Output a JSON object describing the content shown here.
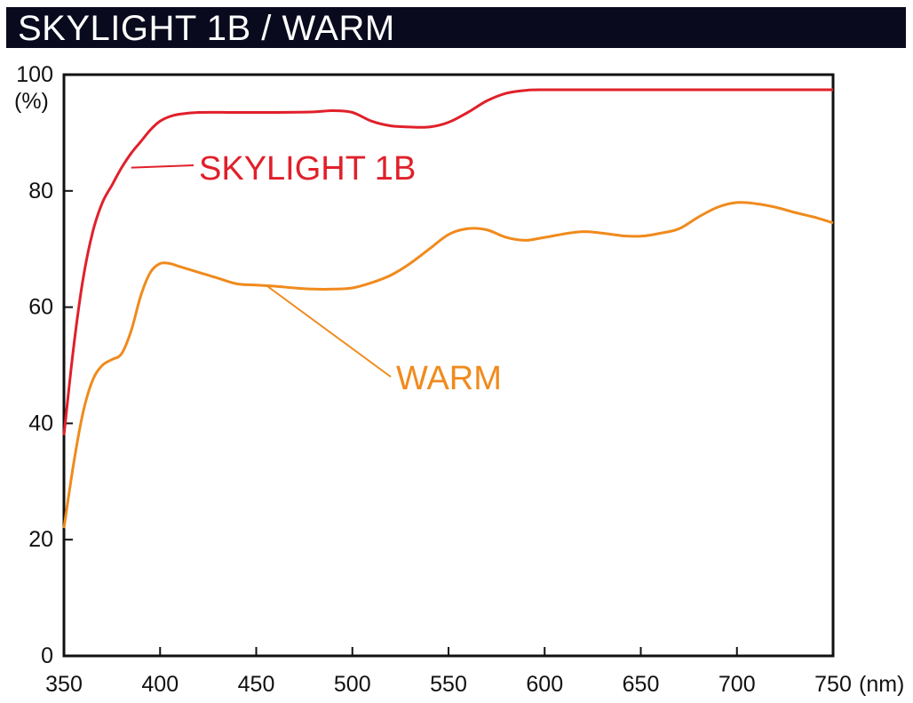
{
  "title": "SKYLIGHT 1B / WARM",
  "chart_data": {
    "type": "line",
    "title": "SKYLIGHT 1B / WARM",
    "xlabel": "(nm)",
    "ylabel": "(%)",
    "xlim": [
      350,
      750
    ],
    "ylim": [
      0,
      100
    ],
    "x_ticks": [
      350,
      400,
      450,
      500,
      550,
      600,
      650,
      700,
      750
    ],
    "y_ticks": [
      0,
      20,
      40,
      60,
      80,
      100
    ],
    "grid": false,
    "series": [
      {
        "name": "SKYLIGHT 1B",
        "color": "#e0202a",
        "x": [
          350,
          355,
          360,
          365,
          370,
          375,
          380,
          385,
          390,
          395,
          400,
          405,
          410,
          420,
          440,
          460,
          480,
          490,
          500,
          510,
          520,
          530,
          540,
          550,
          560,
          570,
          580,
          590,
          600,
          650,
          700,
          750
        ],
        "y": [
          38,
          53,
          65,
          73,
          78,
          81,
          84,
          86.5,
          88.5,
          90.5,
          92,
          92.8,
          93.2,
          93.5,
          93.5,
          93.5,
          93.6,
          93.8,
          93.5,
          92,
          91.2,
          91,
          91,
          91.8,
          93.5,
          95.5,
          96.8,
          97.3,
          97.4,
          97.4,
          97.4,
          97.4
        ]
      },
      {
        "name": "WARM",
        "color": "#f08a1c",
        "x": [
          350,
          355,
          360,
          365,
          370,
          375,
          380,
          385,
          390,
          395,
          400,
          405,
          410,
          420,
          430,
          440,
          450,
          460,
          470,
          480,
          490,
          500,
          510,
          520,
          530,
          540,
          550,
          560,
          570,
          580,
          590,
          600,
          620,
          640,
          650,
          660,
          670,
          680,
          690,
          700,
          710,
          720,
          730,
          740,
          750
        ],
        "y": [
          22,
          33,
          42,
          47.5,
          50,
          51,
          52,
          56,
          62,
          66,
          67.5,
          67.5,
          67,
          66,
          65,
          64,
          63.8,
          63.6,
          63.3,
          63.1,
          63.1,
          63.3,
          64.2,
          65.5,
          67.5,
          70,
          72.5,
          73.5,
          73.3,
          72,
          71.5,
          72,
          73,
          72.3,
          72.2,
          72.7,
          73.5,
          75.5,
          77.2,
          78,
          77.8,
          77.2,
          76.3,
          75.5,
          74.5
        ]
      }
    ]
  }
}
